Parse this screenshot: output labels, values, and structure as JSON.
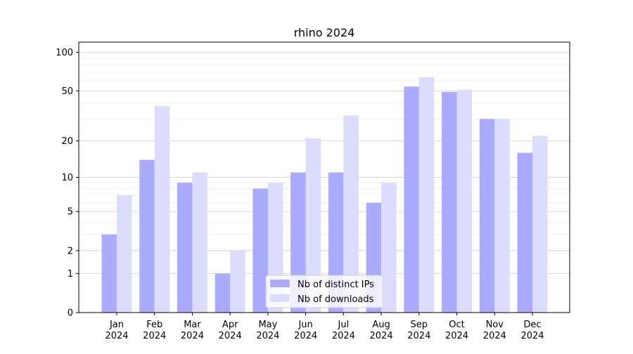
{
  "chart_data": {
    "type": "bar",
    "title": "rhino 2024",
    "xlabel": "",
    "ylabel": "",
    "yscale": "symlog",
    "ylim": [
      0,
      120
    ],
    "yticks": [
      0,
      1,
      2,
      5,
      10,
      20,
      50,
      100
    ],
    "ytick_labels": [
      "0",
      "1",
      "2",
      "5",
      "10",
      "20",
      "50",
      "100"
    ],
    "grid": "horizontal",
    "legend_position": "bottom-center",
    "categories": [
      "Jan\n2024",
      "Feb\n2024",
      "Mar\n2024",
      "Apr\n2024",
      "May\n2024",
      "Jun\n2024",
      "Jul\n2024",
      "Aug\n2024",
      "Sep\n2024",
      "Oct\n2024",
      "Nov\n2024",
      "Dec\n2024"
    ],
    "category_lines": [
      [
        "Jan",
        "2024"
      ],
      [
        "Feb",
        "2024"
      ],
      [
        "Mar",
        "2024"
      ],
      [
        "Apr",
        "2024"
      ],
      [
        "May",
        "2024"
      ],
      [
        "Jun",
        "2024"
      ],
      [
        "Jul",
        "2024"
      ],
      [
        "Aug",
        "2024"
      ],
      [
        "Sep",
        "2024"
      ],
      [
        "Oct",
        "2024"
      ],
      [
        "Nov",
        "2024"
      ],
      [
        "Dec",
        "2024"
      ]
    ],
    "series": [
      {
        "name": "Nb of distinct IPs",
        "color": "#aaaaff",
        "values": [
          3,
          14,
          9,
          1,
          8,
          11,
          11,
          6,
          54,
          49,
          30,
          16
        ]
      },
      {
        "name": "Nb of downloads",
        "color": "#dcdcff",
        "values": [
          7,
          38,
          11,
          2,
          9,
          21,
          32,
          9,
          64,
          51,
          30,
          22
        ]
      }
    ]
  }
}
